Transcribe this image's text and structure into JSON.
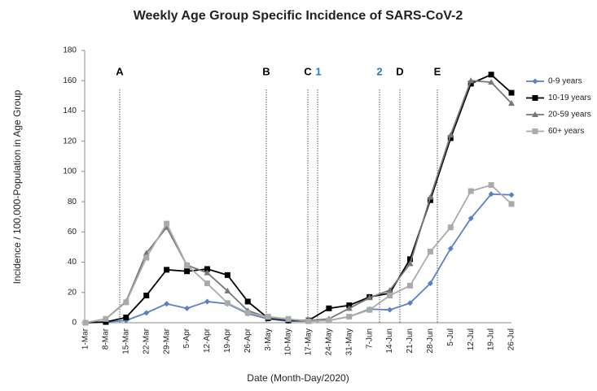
{
  "chart_data": {
    "type": "line",
    "title": "Weekly Age Group Specific Incidence of SARS-CoV-2",
    "x_label": "Date (Month-Day/2020)",
    "y_label": "Incidence / 100,000-Population in Age Group",
    "categories": [
      "1-Mar",
      "8-Mar",
      "15-Mar",
      "22-Mar",
      "29-Mar",
      "5-Apr",
      "12-Apr",
      "19-Apr",
      "26-Apr",
      "3-May",
      "10-May",
      "17-May",
      "24-May",
      "31-May",
      "7-Jun",
      "14-Jun",
      "21-Jun",
      "28-Jun",
      "5-Jul",
      "12-Jul",
      "19-Jul",
      "26-Jul"
    ],
    "series": [
      {
        "name": "0-9 years",
        "color": "#5b7fc6",
        "marker": "diamond",
        "values": [
          0,
          0.5,
          1.5,
          6.5,
          12.5,
          9.5,
          14,
          12.5,
          6,
          2.5,
          1,
          1,
          1.5,
          4,
          9,
          8.5,
          13,
          26,
          49,
          69,
          85,
          84.5
        ]
      },
      {
        "name": "10-19 years",
        "color": "#000000",
        "marker": "square",
        "values": [
          0,
          0.5,
          3.5,
          18,
          35,
          34,
          35.5,
          31.5,
          14,
          3,
          1.5,
          1.5,
          9.5,
          11.5,
          17,
          19.5,
          42,
          81,
          122,
          158,
          164,
          152
        ]
      },
      {
        "name": "20-59 years",
        "color": "#777777",
        "marker": "triangle",
        "values": [
          0,
          2.5,
          14,
          46,
          63,
          38,
          33,
          21,
          8,
          3.5,
          2,
          1.5,
          2.5,
          9.5,
          16.5,
          21.5,
          39,
          83,
          124,
          160,
          159,
          145
        ]
      },
      {
        "name": "60+ years",
        "color": "#aaaaaa",
        "marker": "square",
        "values": [
          0,
          2.5,
          13.5,
          43,
          65.5,
          38,
          26,
          13,
          6.5,
          4,
          2.5,
          1,
          1.5,
          4,
          8.5,
          18,
          24.5,
          47,
          63,
          87,
          91,
          78.5
        ]
      }
    ],
    "ylim": [
      0,
      180
    ],
    "yticks": [
      0,
      20,
      40,
      60,
      80,
      100,
      120,
      140,
      160,
      180
    ],
    "annotations": [
      {
        "text": "A",
        "color": "#000000"
      },
      {
        "text": "B",
        "color": "#000000"
      },
      {
        "text": "C",
        "color": "#000000"
      },
      {
        "text": "1",
        "color": "#2a7ab8"
      },
      {
        "text": "2",
        "color": "#2a7ab8"
      },
      {
        "text": "D",
        "color": "#000000"
      },
      {
        "text": "E",
        "color": "#000000"
      }
    ],
    "legend": "right"
  }
}
